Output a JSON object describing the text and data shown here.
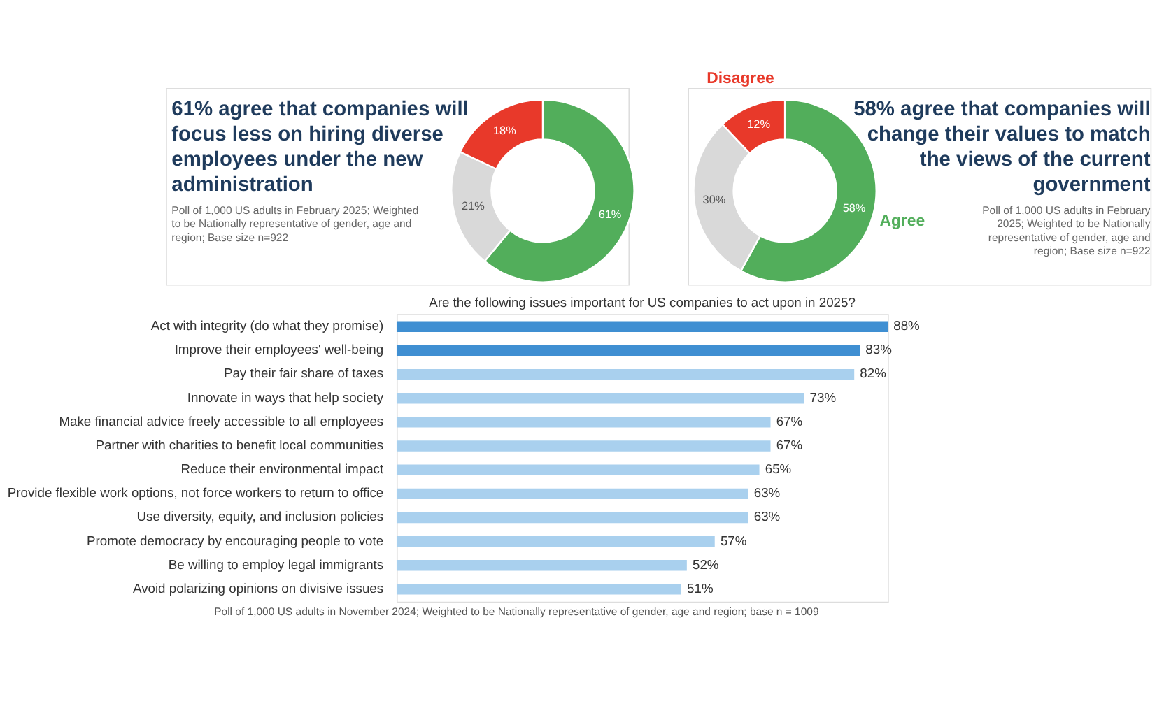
{
  "chart_data": [
    {
      "type": "donut",
      "title": "61% agree that companies will focus less on hiring diverse employees under the new administration",
      "subtitle": "Poll of 1,000 US adults in February 2025; Weighted to be Nationally representative of gender, age and region; Base size n=922",
      "categories": [
        null,
        null,
        null
      ],
      "values": [
        61,
        21,
        18
      ],
      "colors": [
        "#52ae5b",
        "#d9d9d9",
        "#e8392a"
      ],
      "value_labels": [
        "61%",
        "21%",
        "18%"
      ]
    },
    {
      "type": "donut",
      "title": "58% agree that companies will change their values to match the views of the current government",
      "subtitle": "Poll of 1,000 US adults in February 2025; Weighted to be Nationally representative of gender, age and region; Base size n=922",
      "categories": [
        "Agree",
        null,
        "Disagree"
      ],
      "values": [
        58,
        30,
        12
      ],
      "colors": [
        "#52ae5b",
        "#d9d9d9",
        "#e8392a"
      ],
      "value_labels": [
        "58%",
        "30%",
        "12%"
      ]
    },
    {
      "type": "bar",
      "orientation": "horizontal",
      "title": "Are the following issues important for US companies to act upon in 2025?",
      "categories": [
        "Act with integrity (do what they promise)",
        "Improve their employees' well-being",
        "Pay their fair share of taxes",
        "Innovate in ways that help society",
        "Make financial advice freely accessible to all employees",
        "Partner with charities to benefit local communities",
        "Reduce their environmental impact",
        "Provide flexible work options, not force workers to return to office",
        "Use diversity, equity, and inclusion policies",
        "Promote democracy by encouraging people to vote",
        "Be willing to employ legal immigrants",
        "Avoid polarizing opinions on divisive issues"
      ],
      "values": [
        88,
        83,
        82,
        73,
        67,
        67,
        65,
        63,
        63,
        57,
        52,
        51
      ],
      "colors": [
        "#3f8fd2",
        "#3f8fd2",
        "#a9d0ee",
        "#a9d0ee",
        "#a9d0ee",
        "#a9d0ee",
        "#a9d0ee",
        "#a9d0ee",
        "#a9d0ee",
        "#a9d0ee",
        "#a9d0ee",
        "#a9d0ee"
      ],
      "value_labels": [
        "88%",
        "83%",
        "82%",
        "73%",
        "67%",
        "67%",
        "65%",
        "63%",
        "63%",
        "57%",
        "52%",
        "51%"
      ],
      "annotations": [
        "Poll of 1,000 US adults in November 2024; Weighted to be Nationally representative of gender, age and region; base n = 1009"
      ]
    }
  ]
}
